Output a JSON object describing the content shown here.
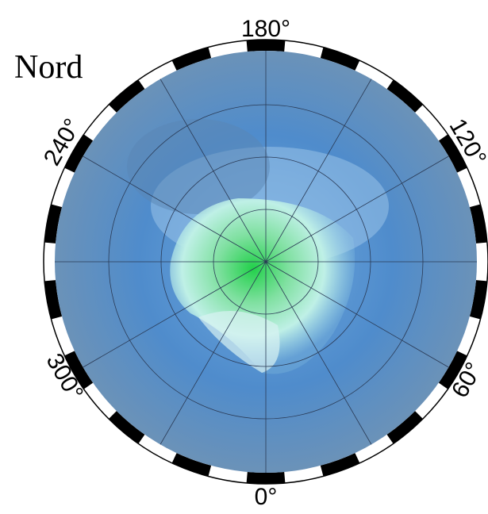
{
  "title": "Nord",
  "longitude_labels": [
    "180°",
    "120°",
    "60°",
    "0°",
    "300°",
    "240°"
  ]
}
